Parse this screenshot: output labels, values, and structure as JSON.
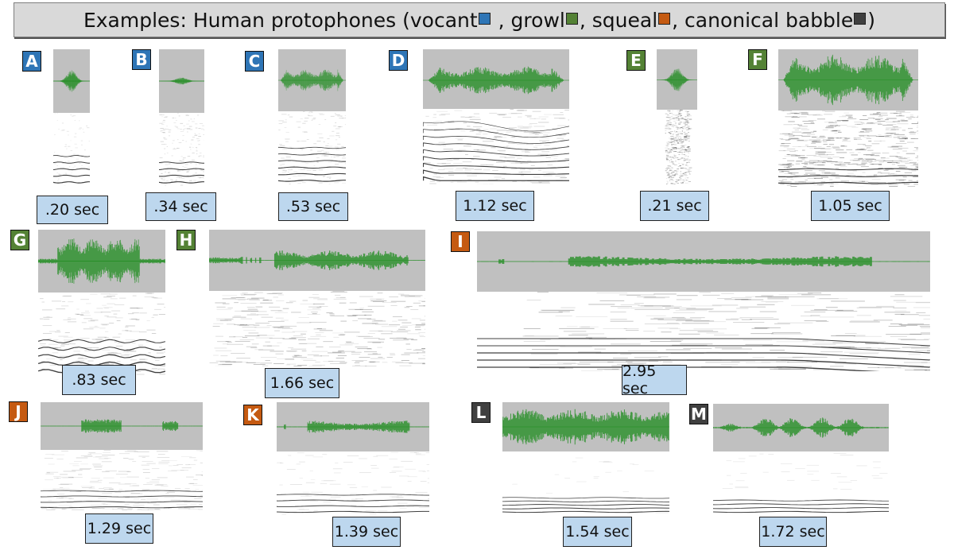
{
  "title": {
    "prefix": "Examples: Human protophones (",
    "items": [
      {
        "label": "vocant",
        "color": "#2e75b6",
        "sep": " , "
      },
      {
        "label": "growl",
        "color": "#548235",
        "sep": ", "
      },
      {
        "label": "squeal",
        "color": "#c55a11",
        "sep": ", "
      },
      {
        "label": "canonical babble",
        "color": "#404040",
        "sep": ""
      }
    ],
    "suffix": ")"
  },
  "categories": {
    "vocant": "#2e75b6",
    "growl": "#548235",
    "squeal": "#c55a11",
    "canonical_babble": "#404040"
  },
  "waveform_color": "#1e8c1e",
  "panels": [
    {
      "id": "A",
      "type": "vocant",
      "duration": ".20 sec"
    },
    {
      "id": "B",
      "type": "vocant",
      "duration": ".34 sec"
    },
    {
      "id": "C",
      "type": "vocant",
      "duration": ".53 sec"
    },
    {
      "id": "D",
      "type": "vocant",
      "duration": "1.12 sec"
    },
    {
      "id": "E",
      "type": "growl",
      "duration": ".21 sec"
    },
    {
      "id": "F",
      "type": "growl",
      "duration": "1.05 sec"
    },
    {
      "id": "G",
      "type": "growl",
      "duration": ".83 sec"
    },
    {
      "id": "H",
      "type": "growl",
      "duration": "1.66 sec"
    },
    {
      "id": "I",
      "type": "squeal",
      "duration": "2.95 sec"
    },
    {
      "id": "J",
      "type": "squeal",
      "duration": "1.29 sec"
    },
    {
      "id": "K",
      "type": "squeal",
      "duration": "1.39 sec"
    },
    {
      "id": "L",
      "type": "canonical_babble",
      "duration": "1.54 sec"
    },
    {
      "id": "M",
      "type": "canonical_babble",
      "duration": "1.72 sec"
    }
  ]
}
